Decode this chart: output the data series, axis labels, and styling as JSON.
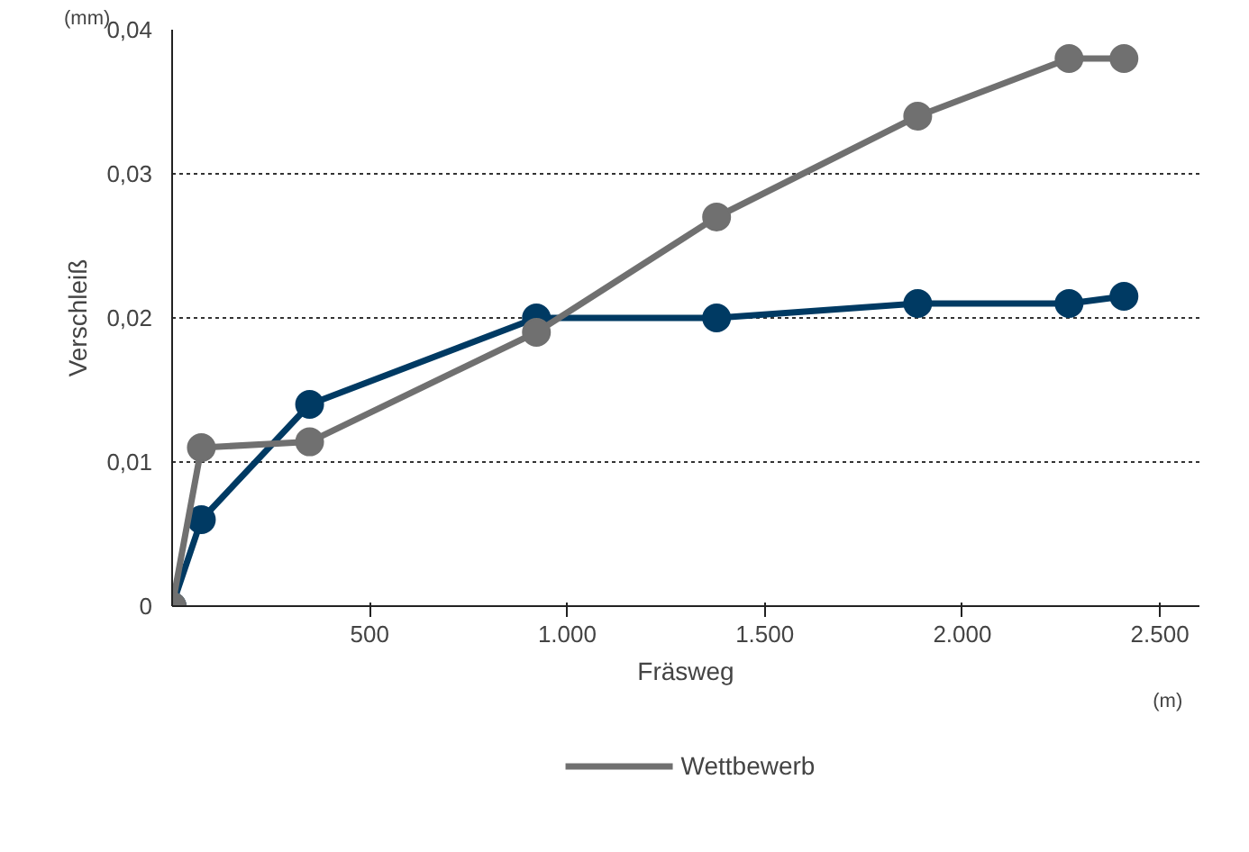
{
  "chart_data": {
    "type": "line",
    "xlabel": "Fräsweg",
    "ylabel": "Verschleiß",
    "x": [
      0,
      74,
      348,
      922,
      1378,
      1887,
      2270,
      2409
    ],
    "series": [
      {
        "color": "#003a63",
        "values": [
          0,
          0.006,
          0.014,
          0.02,
          0.02,
          0.021,
          0.021,
          0.0215
        ]
      },
      {
        "name": "Wettbewerb",
        "color": "#707070",
        "values": [
          0,
          0.011,
          0.0114,
          0.019,
          0.027,
          0.034,
          0.038,
          0.038
        ]
      }
    ],
    "xlim": [
      0,
      2600
    ],
    "ylim": [
      0,
      0.04
    ],
    "xticks": [
      {
        "value": 500,
        "label": "500"
      },
      {
        "value": 1000,
        "label": "1.000"
      },
      {
        "value": 1500,
        "label": "1.500"
      },
      {
        "value": 2000,
        "label": "2.000"
      },
      {
        "value": 2500,
        "label": "2.500"
      }
    ],
    "yticks": [
      {
        "value": 0,
        "label": "0"
      },
      {
        "value": 0.01,
        "label": "0,01"
      },
      {
        "value": 0.02,
        "label": "0,02"
      },
      {
        "value": 0.03,
        "label": "0,03"
      },
      {
        "value": 0.04,
        "label": "0,04"
      }
    ],
    "grid": "y",
    "legend": "bottom",
    "marker": "circle",
    "line_style": "solid",
    "annotations": [
      "(mm)",
      "(m)"
    ]
  }
}
